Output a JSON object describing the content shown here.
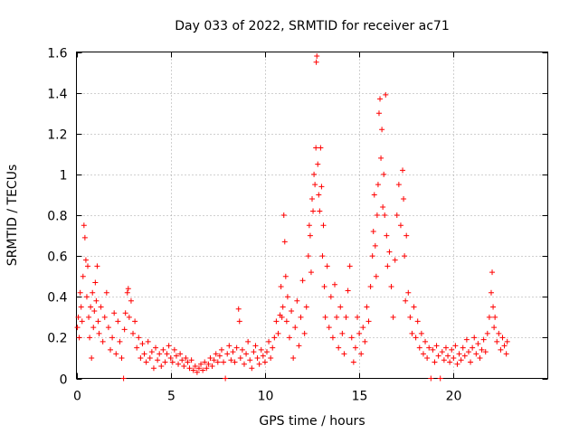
{
  "chart_data": {
    "type": "scatter",
    "title": "Day 033 of 2022, SRMTID for receiver ac71",
    "xlabel": "GPS time / hours",
    "ylabel": "SRMTID / TECUs",
    "xlim": [
      0,
      25
    ],
    "ylim": [
      0,
      1.6
    ],
    "x_ticks": [
      0,
      5,
      10,
      15,
      20
    ],
    "x_tick_labels": [
      "0",
      "5",
      "10",
      "15",
      "20"
    ],
    "y_ticks": [
      0,
      0.2,
      0.4,
      0.6,
      0.8,
      1.0,
      1.2,
      1.4,
      1.6
    ],
    "y_tick_labels": [
      "0",
      "0.2",
      "0.4",
      "0.6",
      "0.8",
      "1",
      "1.2",
      "1.4",
      "1.6"
    ],
    "grid": true,
    "marker": "plus",
    "color": "#ff0000",
    "series": [
      {
        "name": "ac71",
        "points": [
          [
            0.05,
            0.25
          ],
          [
            0.1,
            0.3
          ],
          [
            0.15,
            0.2
          ],
          [
            0.2,
            0.42
          ],
          [
            0.25,
            0.35
          ],
          [
            0.3,
            0.28
          ],
          [
            0.35,
            0.5
          ],
          [
            0.4,
            0.75
          ],
          [
            0.45,
            0.69
          ],
          [
            0.5,
            0.58
          ],
          [
            0.55,
            0.4
          ],
          [
            0.6,
            0.55
          ],
          [
            0.65,
            0.3
          ],
          [
            0.7,
            0.2
          ],
          [
            0.75,
            0.35
          ],
          [
            0.8,
            0.1
          ],
          [
            0.85,
            0.42
          ],
          [
            0.9,
            0.25
          ],
          [
            0.95,
            0.33
          ],
          [
            1.0,
            0.47
          ],
          [
            1.05,
            0.38
          ],
          [
            1.1,
            0.55
          ],
          [
            1.15,
            0.28
          ],
          [
            1.2,
            0.22
          ],
          [
            1.3,
            0.35
          ],
          [
            1.4,
            0.18
          ],
          [
            1.5,
            0.3
          ],
          [
            1.6,
            0.42
          ],
          [
            1.7,
            0.25
          ],
          [
            1.8,
            0.14
          ],
          [
            1.9,
            0.2
          ],
          [
            2.0,
            0.32
          ],
          [
            2.1,
            0.12
          ],
          [
            2.2,
            0.28
          ],
          [
            2.3,
            0.18
          ],
          [
            2.4,
            0.1
          ],
          [
            2.5,
            0.0
          ],
          [
            2.55,
            0.24
          ],
          [
            2.6,
            0.32
          ],
          [
            2.7,
            0.42
          ],
          [
            2.75,
            0.44
          ],
          [
            2.8,
            0.3
          ],
          [
            2.9,
            0.38
          ],
          [
            3.0,
            0.22
          ],
          [
            3.1,
            0.28
          ],
          [
            3.2,
            0.15
          ],
          [
            3.3,
            0.2
          ],
          [
            3.4,
            0.1
          ],
          [
            3.5,
            0.17
          ],
          [
            3.6,
            0.12
          ],
          [
            3.7,
            0.08
          ],
          [
            3.8,
            0.18
          ],
          [
            3.9,
            0.1
          ],
          [
            4.0,
            0.13
          ],
          [
            4.1,
            0.05
          ],
          [
            4.2,
            0.15
          ],
          [
            4.3,
            0.09
          ],
          [
            4.4,
            0.12
          ],
          [
            4.5,
            0.06
          ],
          [
            4.6,
            0.14
          ],
          [
            4.7,
            0.08
          ],
          [
            4.8,
            0.12
          ],
          [
            4.9,
            0.16
          ],
          [
            5.0,
            0.1
          ],
          [
            5.1,
            0.08
          ],
          [
            5.2,
            0.14
          ],
          [
            5.3,
            0.11
          ],
          [
            5.4,
            0.07
          ],
          [
            5.5,
            0.12
          ],
          [
            5.6,
            0.09
          ],
          [
            5.7,
            0.06
          ],
          [
            5.8,
            0.1
          ],
          [
            5.9,
            0.08
          ],
          [
            6.0,
            0.05
          ],
          [
            6.1,
            0.09
          ],
          [
            6.2,
            0.04
          ],
          [
            6.3,
            0.06
          ],
          [
            6.4,
            0.03
          ],
          [
            6.5,
            0.05
          ],
          [
            6.6,
            0.07
          ],
          [
            6.7,
            0.04
          ],
          [
            6.8,
            0.08
          ],
          [
            6.9,
            0.05
          ],
          [
            7.0,
            0.07
          ],
          [
            7.1,
            0.1
          ],
          [
            7.2,
            0.06
          ],
          [
            7.3,
            0.09
          ],
          [
            7.4,
            0.12
          ],
          [
            7.5,
            0.08
          ],
          [
            7.6,
            0.11
          ],
          [
            7.7,
            0.14
          ],
          [
            7.8,
            0.08
          ],
          [
            7.9,
            0.0
          ],
          [
            8.0,
            0.12
          ],
          [
            8.1,
            0.16
          ],
          [
            8.2,
            0.09
          ],
          [
            8.3,
            0.13
          ],
          [
            8.4,
            0.08
          ],
          [
            8.5,
            0.15
          ],
          [
            8.6,
            0.34
          ],
          [
            8.65,
            0.28
          ],
          [
            8.7,
            0.1
          ],
          [
            8.8,
            0.14
          ],
          [
            8.9,
            0.07
          ],
          [
            9.0,
            0.12
          ],
          [
            9.1,
            0.18
          ],
          [
            9.2,
            0.09
          ],
          [
            9.3,
            0.05
          ],
          [
            9.4,
            0.13
          ],
          [
            9.5,
            0.16
          ],
          [
            9.6,
            0.1
          ],
          [
            9.7,
            0.07
          ],
          [
            9.8,
            0.14
          ],
          [
            9.9,
            0.11
          ],
          [
            10.0,
            0.08
          ],
          [
            10.1,
            0.13
          ],
          [
            10.2,
            0.18
          ],
          [
            10.3,
            0.1
          ],
          [
            10.4,
            0.15
          ],
          [
            10.5,
            0.2
          ],
          [
            10.6,
            0.28
          ],
          [
            10.7,
            0.22
          ],
          [
            10.8,
            0.31
          ],
          [
            10.85,
            0.45
          ],
          [
            10.9,
            0.3
          ],
          [
            10.95,
            0.35
          ],
          [
            11.0,
            0.8
          ],
          [
            11.05,
            0.67
          ],
          [
            11.1,
            0.5
          ],
          [
            11.15,
            0.28
          ],
          [
            11.2,
            0.4
          ],
          [
            11.3,
            0.2
          ],
          [
            11.4,
            0.33
          ],
          [
            11.5,
            0.1
          ],
          [
            11.6,
            0.25
          ],
          [
            11.7,
            0.38
          ],
          [
            11.8,
            0.16
          ],
          [
            11.9,
            0.3
          ],
          [
            12.0,
            0.48
          ],
          [
            12.1,
            0.22
          ],
          [
            12.2,
            0.35
          ],
          [
            12.3,
            0.6
          ],
          [
            12.35,
            0.75
          ],
          [
            12.4,
            0.7
          ],
          [
            12.45,
            0.52
          ],
          [
            12.5,
            0.88
          ],
          [
            12.55,
            0.82
          ],
          [
            12.6,
            1.0
          ],
          [
            12.65,
            0.95
          ],
          [
            12.7,
            1.13
          ],
          [
            12.72,
            1.55
          ],
          [
            12.75,
            1.58
          ],
          [
            12.8,
            1.05
          ],
          [
            12.85,
            0.9
          ],
          [
            12.9,
            0.82
          ],
          [
            12.95,
            1.13
          ],
          [
            13.0,
            0.94
          ],
          [
            13.05,
            0.6
          ],
          [
            13.1,
            0.75
          ],
          [
            13.15,
            0.45
          ],
          [
            13.2,
            0.3
          ],
          [
            13.3,
            0.55
          ],
          [
            13.4,
            0.25
          ],
          [
            13.5,
            0.4
          ],
          [
            13.6,
            0.2
          ],
          [
            13.7,
            0.46
          ],
          [
            13.8,
            0.3
          ],
          [
            13.9,
            0.15
          ],
          [
            14.0,
            0.35
          ],
          [
            14.1,
            0.22
          ],
          [
            14.2,
            0.12
          ],
          [
            14.3,
            0.3
          ],
          [
            14.4,
            0.43
          ],
          [
            14.5,
            0.55
          ],
          [
            14.6,
            0.2
          ],
          [
            14.7,
            0.08
          ],
          [
            14.8,
            0.15
          ],
          [
            14.9,
            0.3
          ],
          [
            15.0,
            0.22
          ],
          [
            15.1,
            0.12
          ],
          [
            15.2,
            0.25
          ],
          [
            15.3,
            0.18
          ],
          [
            15.4,
            0.35
          ],
          [
            15.5,
            0.28
          ],
          [
            15.6,
            0.45
          ],
          [
            15.7,
            0.6
          ],
          [
            15.75,
            0.72
          ],
          [
            15.8,
            0.9
          ],
          [
            15.85,
            0.65
          ],
          [
            15.9,
            0.5
          ],
          [
            15.95,
            0.8
          ],
          [
            16.0,
            0.95
          ],
          [
            16.05,
            1.3
          ],
          [
            16.1,
            1.37
          ],
          [
            16.15,
            1.08
          ],
          [
            16.2,
            1.22
          ],
          [
            16.25,
            0.84
          ],
          [
            16.3,
            1.0
          ],
          [
            16.35,
            0.8
          ],
          [
            16.4,
            1.39
          ],
          [
            16.45,
            0.7
          ],
          [
            16.5,
            0.55
          ],
          [
            16.6,
            0.62
          ],
          [
            16.7,
            0.45
          ],
          [
            16.8,
            0.3
          ],
          [
            16.9,
            0.58
          ],
          [
            17.0,
            0.8
          ],
          [
            17.1,
            0.95
          ],
          [
            17.2,
            0.75
          ],
          [
            17.3,
            1.02
          ],
          [
            17.35,
            0.88
          ],
          [
            17.4,
            0.6
          ],
          [
            17.45,
            0.38
          ],
          [
            17.5,
            0.7
          ],
          [
            17.6,
            0.42
          ],
          [
            17.7,
            0.3
          ],
          [
            17.8,
            0.22
          ],
          [
            17.9,
            0.35
          ],
          [
            18.0,
            0.2
          ],
          [
            18.1,
            0.28
          ],
          [
            18.2,
            0.15
          ],
          [
            18.3,
            0.22
          ],
          [
            18.4,
            0.12
          ],
          [
            18.5,
            0.18
          ],
          [
            18.6,
            0.1
          ],
          [
            18.7,
            0.15
          ],
          [
            18.8,
            0.0
          ],
          [
            18.9,
            0.14
          ],
          [
            19.0,
            0.08
          ],
          [
            19.1,
            0.16
          ],
          [
            19.2,
            0.11
          ],
          [
            19.3,
            0.0
          ],
          [
            19.4,
            0.13
          ],
          [
            19.5,
            0.09
          ],
          [
            19.6,
            0.15
          ],
          [
            19.7,
            0.11
          ],
          [
            19.8,
            0.08
          ],
          [
            19.9,
            0.14
          ],
          [
            20.0,
            0.1
          ],
          [
            20.1,
            0.16
          ],
          [
            20.2,
            0.07
          ],
          [
            20.3,
            0.12
          ],
          [
            20.4,
            0.09
          ],
          [
            20.5,
            0.15
          ],
          [
            20.6,
            0.11
          ],
          [
            20.7,
            0.19
          ],
          [
            20.8,
            0.13
          ],
          [
            20.9,
            0.08
          ],
          [
            21.0,
            0.15
          ],
          [
            21.1,
            0.2
          ],
          [
            21.2,
            0.12
          ],
          [
            21.3,
            0.17
          ],
          [
            21.4,
            0.1
          ],
          [
            21.5,
            0.14
          ],
          [
            21.6,
            0.19
          ],
          [
            21.7,
            0.13
          ],
          [
            21.8,
            0.22
          ],
          [
            21.9,
            0.3
          ],
          [
            22.0,
            0.42
          ],
          [
            22.05,
            0.52
          ],
          [
            22.1,
            0.35
          ],
          [
            22.15,
            0.25
          ],
          [
            22.2,
            0.3
          ],
          [
            22.3,
            0.18
          ],
          [
            22.4,
            0.22
          ],
          [
            22.5,
            0.14
          ],
          [
            22.6,
            0.2
          ],
          [
            22.7,
            0.16
          ],
          [
            22.8,
            0.12
          ],
          [
            22.85,
            0.18
          ]
        ]
      }
    ]
  }
}
